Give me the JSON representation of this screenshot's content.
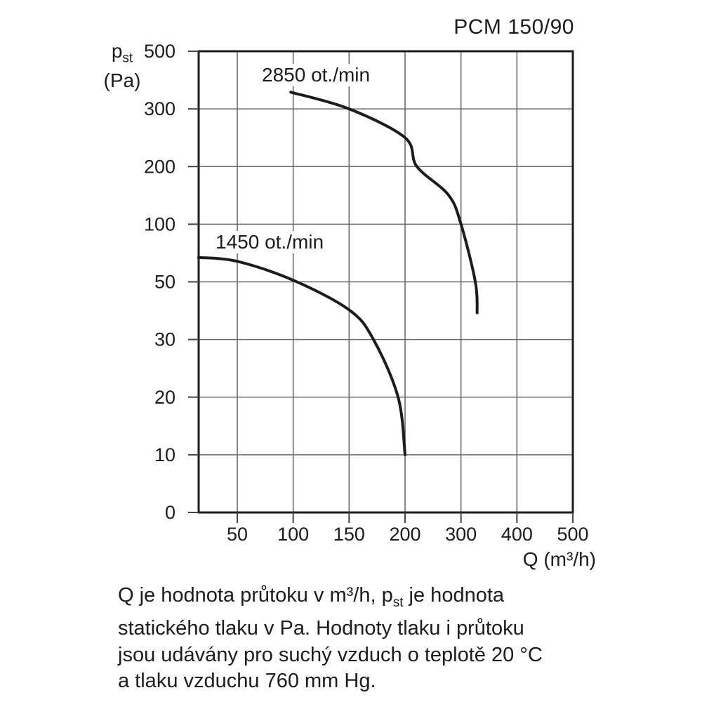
{
  "chart_data": {
    "type": "line",
    "title": "PCM 150/90",
    "x_axis": {
      "label": "Q (m³/h)",
      "ticks": [
        50,
        100,
        150,
        200,
        300,
        400,
        500
      ],
      "min": 0,
      "scale": "segmented-log",
      "grid": true
    },
    "y_axis": {
      "symbol": "p",
      "symbol_sub": "st",
      "unit": "(Pa)",
      "ticks": [
        500,
        300,
        200,
        100,
        50,
        30,
        20,
        10,
        0
      ],
      "scale": "segmented-log",
      "grid": true
    },
    "series": [
      {
        "label": "2850 ot./min",
        "color": "#1c1c1c",
        "points": [
          [
            97,
            348
          ],
          [
            150,
            300
          ],
          [
            200,
            245
          ],
          [
            218,
            200
          ],
          [
            274,
            142
          ],
          [
            300,
            100
          ],
          [
            323,
            50
          ],
          [
            326,
            38
          ]
        ]
      },
      {
        "label": "1450 ot./min",
        "color": "#1c1c1c",
        "points": [
          [
            0,
            67
          ],
          [
            50,
            64
          ],
          [
            100,
            51
          ],
          [
            150,
            39
          ],
          [
            170,
            30
          ],
          [
            193,
            20
          ],
          [
            200,
            10
          ]
        ]
      }
    ]
  },
  "footnote": {
    "line1_pre": "Q je hodnota průtoku v m³/h, p",
    "line1_sub": "st",
    "line1_post": " je hodnota",
    "line2": "statického tlaku v Pa. Hodnoty tlaku i průtoku",
    "line3": "jsou udávány pro suchý vzduch o teplotě 20 °C",
    "line4": "a tlaku vzduchu 760 mm Hg."
  },
  "colors": {
    "text": "#1c1c1c",
    "grid": "#6b6b6b",
    "tick": "#444444",
    "border": "#1c1c1c",
    "curve": "#1c1c1c"
  }
}
